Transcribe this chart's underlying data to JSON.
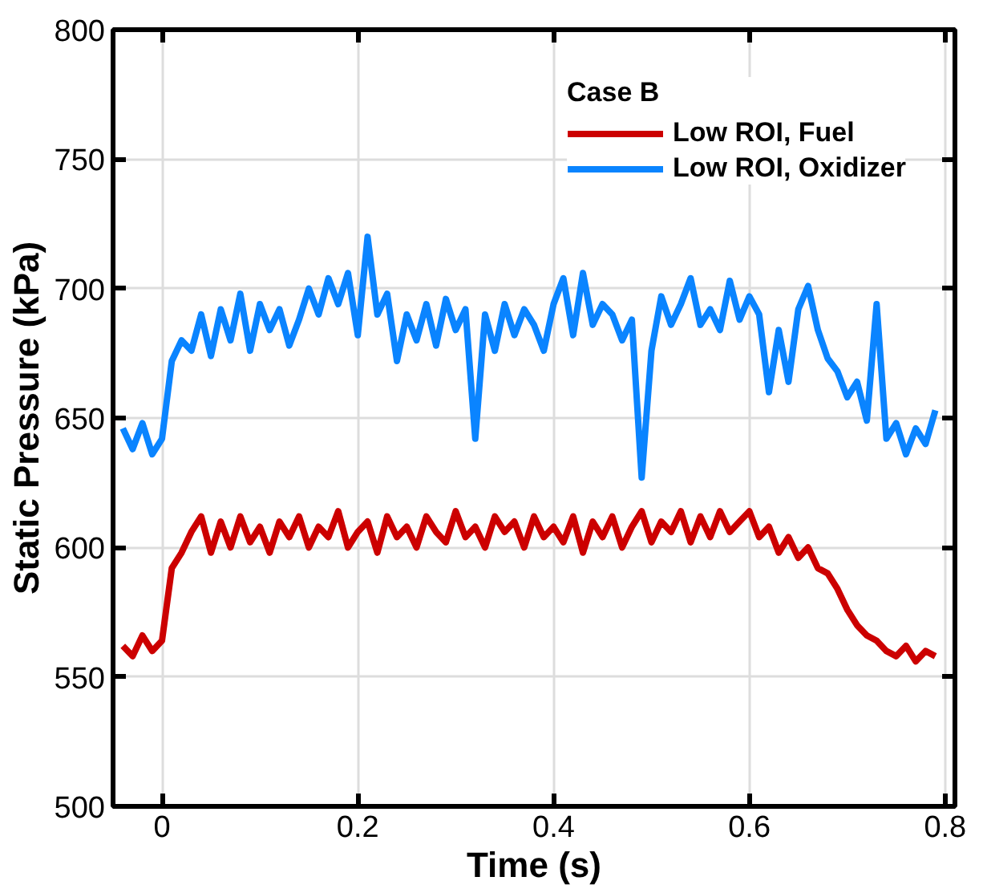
{
  "chart_data": {
    "type": "line",
    "xlabel": "Time (s)",
    "ylabel": "Static Pressure (kPa)",
    "legend_title": "Case B",
    "legend": "top right",
    "grid": true,
    "marker": "none",
    "line_style": "solid",
    "xlim": [
      -0.05,
      0.81
    ],
    "xticks": [
      0,
      0.2,
      0.4,
      0.6,
      0.8
    ],
    "ylim": [
      500,
      800
    ],
    "yticks": [
      500,
      550,
      600,
      650,
      700,
      750,
      800
    ],
    "x": [
      -0.04,
      -0.03,
      -0.02,
      -0.01,
      0.0,
      0.01,
      0.02,
      0.03,
      0.04,
      0.05,
      0.06,
      0.07,
      0.08,
      0.09,
      0.1,
      0.11,
      0.12,
      0.13,
      0.14,
      0.15,
      0.16,
      0.17,
      0.18,
      0.19,
      0.2,
      0.21,
      0.22,
      0.23,
      0.24,
      0.25,
      0.26,
      0.27,
      0.28,
      0.29,
      0.3,
      0.31,
      0.32,
      0.33,
      0.34,
      0.35,
      0.36,
      0.37,
      0.38,
      0.39,
      0.4,
      0.41,
      0.42,
      0.43,
      0.44,
      0.45,
      0.46,
      0.47,
      0.48,
      0.49,
      0.5,
      0.51,
      0.52,
      0.53,
      0.54,
      0.55,
      0.56,
      0.57,
      0.58,
      0.59,
      0.6,
      0.61,
      0.62,
      0.63,
      0.64,
      0.65,
      0.66,
      0.67,
      0.68,
      0.69,
      0.7,
      0.71,
      0.72,
      0.73,
      0.74,
      0.75,
      0.76,
      0.77,
      0.78,
      0.79
    ],
    "series": [
      {
        "name": "Low ROI, Fuel",
        "color": "#cc0000",
        "values": [
          562,
          558,
          566,
          560,
          564,
          592,
          598,
          606,
          612,
          598,
          610,
          600,
          612,
          602,
          608,
          598,
          610,
          604,
          612,
          600,
          608,
          604,
          614,
          600,
          606,
          610,
          598,
          612,
          604,
          608,
          600,
          612,
          606,
          602,
          614,
          604,
          608,
          600,
          612,
          606,
          610,
          600,
          612,
          604,
          608,
          602,
          612,
          598,
          610,
          604,
          612,
          600,
          608,
          614,
          602,
          610,
          606,
          614,
          602,
          612,
          604,
          614,
          606,
          610,
          614,
          604,
          608,
          598,
          604,
          596,
          600,
          592,
          590,
          584,
          576,
          570,
          566,
          564,
          560,
          558,
          562,
          556,
          560,
          558
        ]
      },
      {
        "name": "Low ROI, Oxidizer",
        "color": "#0a84ff",
        "values": [
          646,
          638,
          648,
          636,
          642,
          672,
          680,
          676,
          690,
          674,
          692,
          680,
          698,
          676,
          694,
          684,
          692,
          678,
          688,
          700,
          690,
          704,
          694,
          706,
          682,
          720,
          690,
          698,
          672,
          690,
          680,
          694,
          678,
          696,
          684,
          692,
          642,
          690,
          676,
          694,
          682,
          692,
          686,
          676,
          694,
          704,
          682,
          706,
          686,
          694,
          690,
          680,
          688,
          627,
          676,
          697,
          686,
          694,
          704,
          686,
          692,
          684,
          703,
          688,
          697,
          690,
          660,
          684,
          664,
          692,
          701,
          684,
          673,
          668,
          658,
          664,
          649,
          694,
          642,
          648,
          636,
          646,
          640,
          653
        ]
      }
    ]
  }
}
